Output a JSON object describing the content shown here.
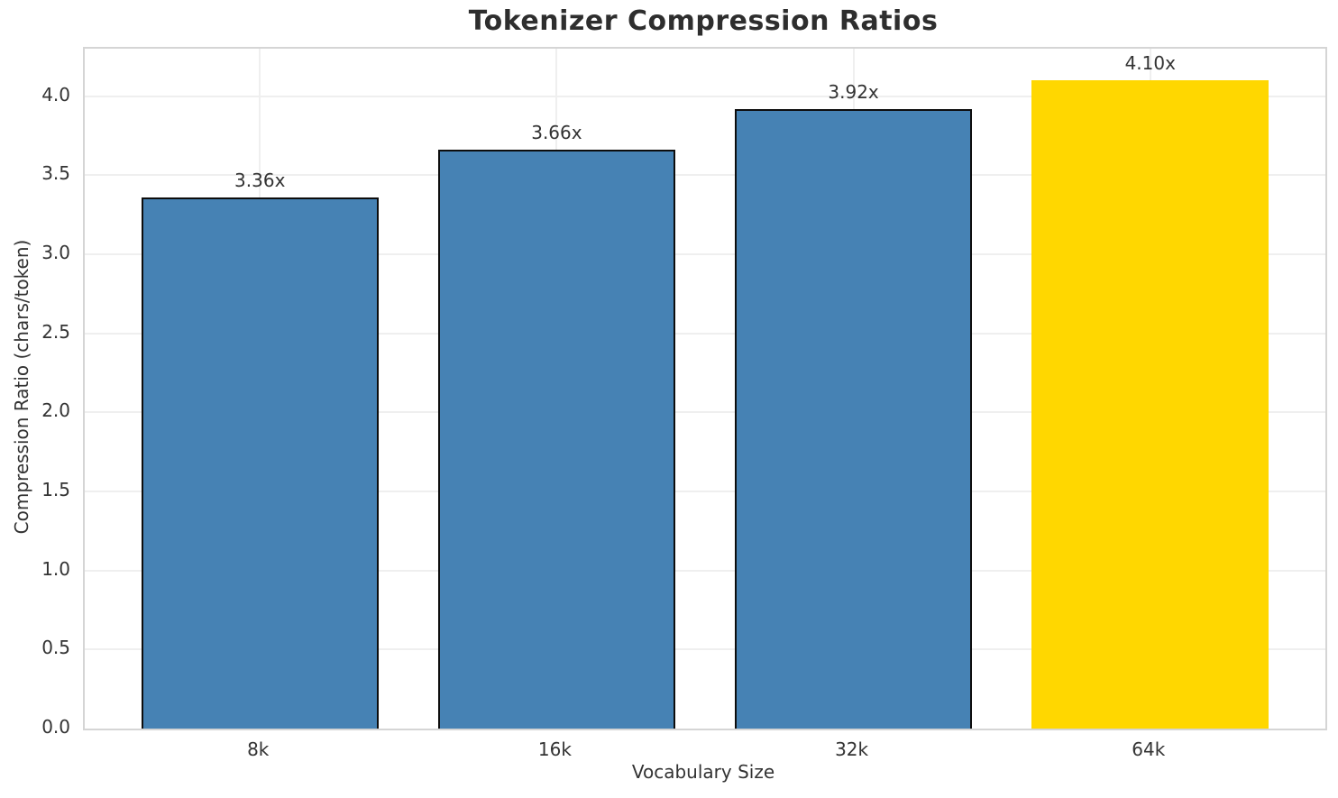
{
  "chart_data": {
    "type": "bar",
    "title": "Tokenizer Compression Ratios",
    "xlabel": "Vocabulary Size",
    "ylabel": "Compression Ratio (chars/token)",
    "categories": [
      "8k",
      "16k",
      "32k",
      "64k"
    ],
    "values": [
      3.36,
      3.66,
      3.92,
      4.1
    ],
    "bar_labels": [
      "3.36x",
      "3.66x",
      "3.92x",
      "4.10x"
    ],
    "bar_colors": [
      "#4682B4",
      "#4682B4",
      "#4682B4",
      "#FFD700"
    ],
    "bar_edge_colors": [
      "#0d0d0d",
      "#0d0d0d",
      "#0d0d0d",
      "none"
    ],
    "yticks": [
      0.0,
      0.5,
      1.0,
      1.5,
      2.0,
      2.5,
      3.0,
      3.5,
      4.0
    ],
    "ytick_labels": [
      "0.0",
      "0.5",
      "1.0",
      "1.5",
      "2.0",
      "2.5",
      "3.0",
      "3.5",
      "4.0"
    ],
    "ylim": [
      0,
      4.3
    ],
    "grid": true,
    "grid_color": "#efefef",
    "spine_color": "#d5d5d5",
    "legend": null
  }
}
